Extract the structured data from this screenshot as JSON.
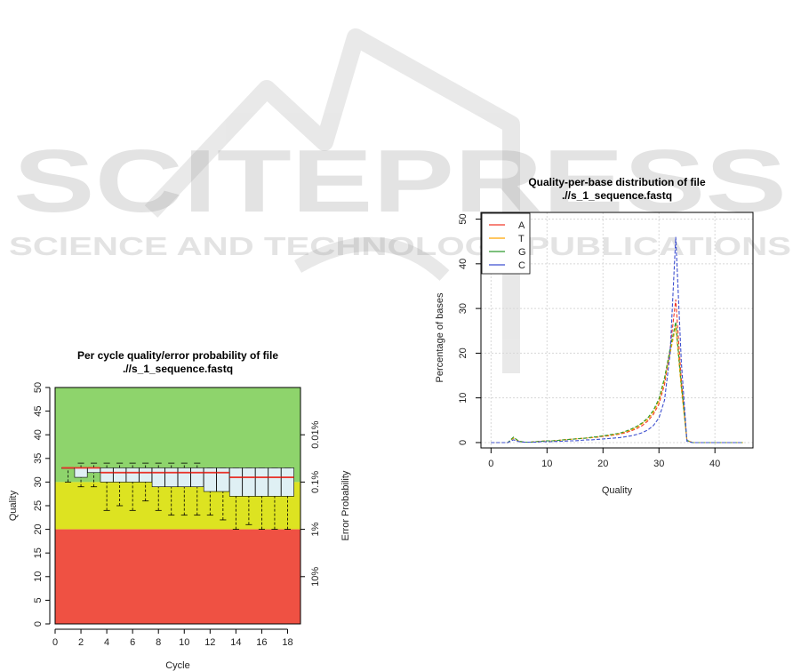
{
  "watermark": {
    "main": "SCITEPRESS",
    "sub": "SCIENCE AND TECHNOLOGY PUBLICATIONS"
  },
  "colors": {
    "good": "#8ed46c",
    "mid": "#dde321",
    "bad": "#ef5143",
    "box_fill": "#dff0f4",
    "median": "#e8332a",
    "A": "#f03a2a",
    "T": "#ffa500",
    "G": "#2e9a2e",
    "C": "#3d4fd0"
  },
  "chart_data": [
    {
      "type": "box",
      "title": [
        "Per cycle quality/error probability of file",
        ".//s_1_sequence.fastq"
      ],
      "xlabel": "Cycle",
      "ylabel": "Quality",
      "y2label": "Error Probability",
      "xlim": [
        0,
        19
      ],
      "ylim": [
        0,
        50
      ],
      "xticks": [
        0,
        2,
        4,
        6,
        8,
        10,
        12,
        14,
        16,
        18
      ],
      "yticks": [
        0,
        5,
        10,
        15,
        20,
        25,
        30,
        35,
        40,
        45,
        50
      ],
      "y2ticks": [
        {
          "q": 40,
          "label": "0.01%"
        },
        {
          "q": 30,
          "label": "0.1%"
        },
        {
          "q": 20,
          "label": "1%"
        },
        {
          "q": 10,
          "label": "10%"
        }
      ],
      "bands": [
        {
          "from": 30,
          "to": 50,
          "color": "good"
        },
        {
          "from": 20,
          "to": 30,
          "color": "mid"
        },
        {
          "from": 0,
          "to": 20,
          "color": "bad"
        }
      ],
      "boxes": [
        {
          "cycle": 1,
          "lo": 30,
          "q1": 33,
          "med": 33,
          "q3": 33,
          "hi": 33
        },
        {
          "cycle": 2,
          "lo": 29,
          "q1": 31,
          "med": 33,
          "q3": 33,
          "hi": 34
        },
        {
          "cycle": 3,
          "lo": 29,
          "q1": 32,
          "med": 33,
          "q3": 33,
          "hi": 34
        },
        {
          "cycle": 4,
          "lo": 24,
          "q1": 30,
          "med": 32,
          "q3": 33,
          "hi": 34
        },
        {
          "cycle": 5,
          "lo": 25,
          "q1": 30,
          "med": 32,
          "q3": 33,
          "hi": 34
        },
        {
          "cycle": 6,
          "lo": 24,
          "q1": 30,
          "med": 32,
          "q3": 33,
          "hi": 34
        },
        {
          "cycle": 7,
          "lo": 26,
          "q1": 30,
          "med": 32,
          "q3": 33,
          "hi": 34
        },
        {
          "cycle": 8,
          "lo": 24,
          "q1": 29,
          "med": 32,
          "q3": 33,
          "hi": 34
        },
        {
          "cycle": 9,
          "lo": 23,
          "q1": 29,
          "med": 32,
          "q3": 33,
          "hi": 34
        },
        {
          "cycle": 10,
          "lo": 23,
          "q1": 29,
          "med": 32,
          "q3": 33,
          "hi": 34
        },
        {
          "cycle": 11,
          "lo": 23,
          "q1": 29,
          "med": 32,
          "q3": 33,
          "hi": 34
        },
        {
          "cycle": 12,
          "lo": 23,
          "q1": 28,
          "med": 32,
          "q3": 33,
          "hi": 33
        },
        {
          "cycle": 13,
          "lo": 22,
          "q1": 28,
          "med": 32,
          "q3": 33,
          "hi": 33
        },
        {
          "cycle": 14,
          "lo": 20,
          "q1": 27,
          "med": 31,
          "q3": 33,
          "hi": 33
        },
        {
          "cycle": 15,
          "lo": 21,
          "q1": 27,
          "med": 31,
          "q3": 33,
          "hi": 33
        },
        {
          "cycle": 16,
          "lo": 20,
          "q1": 27,
          "med": 31,
          "q3": 33,
          "hi": 33
        },
        {
          "cycle": 17,
          "lo": 20,
          "q1": 27,
          "med": 31,
          "q3": 33,
          "hi": 33
        },
        {
          "cycle": 18,
          "lo": 20,
          "q1": 27,
          "med": 31,
          "q3": 33,
          "hi": 33
        }
      ]
    },
    {
      "type": "line",
      "title": [
        "Quality-per-base distribution of file",
        ".//s_1_sequence.fastq"
      ],
      "xlabel": "Quality",
      "ylabel": "Percentage of bases",
      "xlim": [
        -1.8,
        46.8
      ],
      "ylim": [
        -1.2,
        51.5
      ],
      "xticks": [
        0,
        10,
        20,
        30,
        40
      ],
      "yticks": [
        0,
        10,
        20,
        30,
        40,
        50
      ],
      "grid": true,
      "legend": "top-left",
      "x": [
        0,
        1,
        2,
        3,
        4,
        5,
        6,
        7,
        8,
        9,
        10,
        11,
        12,
        13,
        14,
        15,
        16,
        17,
        18,
        19,
        20,
        21,
        22,
        23,
        24,
        25,
        26,
        27,
        28,
        29,
        30,
        31,
        32,
        33,
        34,
        35,
        36,
        37,
        38,
        39,
        40,
        41,
        42,
        43,
        44,
        45
      ],
      "series": [
        {
          "name": "A",
          "color": "A",
          "values": [
            0,
            0,
            0,
            0,
            1.0,
            0.3,
            0.1,
            0.1,
            0.2,
            0.3,
            0.4,
            0.4,
            0.5,
            0.6,
            0.7,
            0.8,
            0.9,
            1.0,
            1.1,
            1.2,
            1.4,
            1.5,
            1.7,
            1.9,
            2.2,
            2.6,
            3.1,
            3.8,
            4.8,
            6.3,
            8.6,
            13,
            21,
            32,
            14,
            0.5,
            0,
            0,
            0,
            0,
            0,
            0,
            0,
            0,
            0,
            0
          ]
        },
        {
          "name": "T",
          "color": "T",
          "values": [
            0,
            0,
            0,
            0,
            1.0,
            0.3,
            0.1,
            0.1,
            0.2,
            0.3,
            0.4,
            0.4,
            0.5,
            0.6,
            0.7,
            0.8,
            0.9,
            1.0,
            1.1,
            1.3,
            1.5,
            1.6,
            1.8,
            2.0,
            2.4,
            2.8,
            3.4,
            4.2,
            5.2,
            6.8,
            9.3,
            14,
            20,
            26,
            12,
            0.5,
            0,
            0,
            0,
            0,
            0,
            0,
            0,
            0,
            0,
            0
          ]
        },
        {
          "name": "G",
          "color": "G",
          "values": [
            0,
            0,
            0,
            0,
            1.2,
            0.3,
            0.1,
            0.1,
            0.2,
            0.3,
            0.4,
            0.4,
            0.5,
            0.6,
            0.7,
            0.8,
            0.9,
            1.0,
            1.2,
            1.3,
            1.5,
            1.7,
            1.9,
            2.1,
            2.5,
            3.0,
            3.6,
            4.4,
            5.5,
            7.2,
            9.8,
            14.5,
            21,
            27,
            13,
            0.5,
            0,
            0,
            0,
            0,
            0,
            0,
            0,
            0,
            0,
            0
          ]
        },
        {
          "name": "C",
          "color": "C",
          "values": [
            0,
            0,
            0,
            0,
            0.6,
            0.2,
            0.1,
            0.1,
            0.1,
            0.2,
            0.2,
            0.2,
            0.3,
            0.3,
            0.4,
            0.4,
            0.5,
            0.6,
            0.6,
            0.7,
            0.8,
            0.9,
            1.0,
            1.1,
            1.3,
            1.5,
            1.8,
            2.2,
            2.8,
            3.8,
            5.5,
            9.5,
            20,
            46,
            18,
            0.3,
            0,
            0,
            0,
            0,
            0,
            0,
            0,
            0,
            0,
            0
          ]
        }
      ]
    }
  ]
}
